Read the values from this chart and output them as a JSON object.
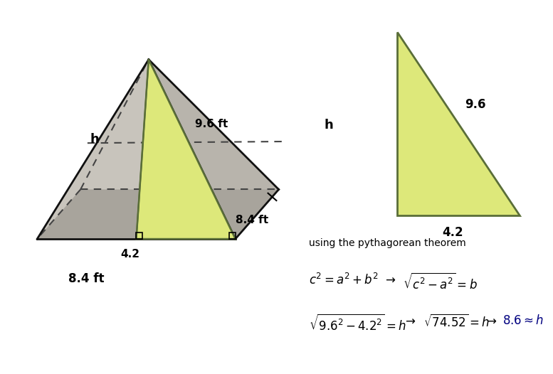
{
  "bg_color": "#d4cfc7",
  "white_bg": "#ffffff",
  "yellow_fill": "#dde87a",
  "tri_edge_color": "#5a6e38",
  "pyramid_line_color": "#111111",
  "dashed_color": "#444444",
  "label_h_left": "h",
  "label_96ft": "9.6 ft",
  "label_42": "4.2",
  "label_84ft_bottom": "8.4 ft",
  "label_84ft_right": "8.4 ft",
  "label_h_right": "h",
  "label_96_right": "9.6",
  "label_42_right": "4.2",
  "text_pythagorean": "using the pythagorean theorem",
  "navy": "#000080"
}
